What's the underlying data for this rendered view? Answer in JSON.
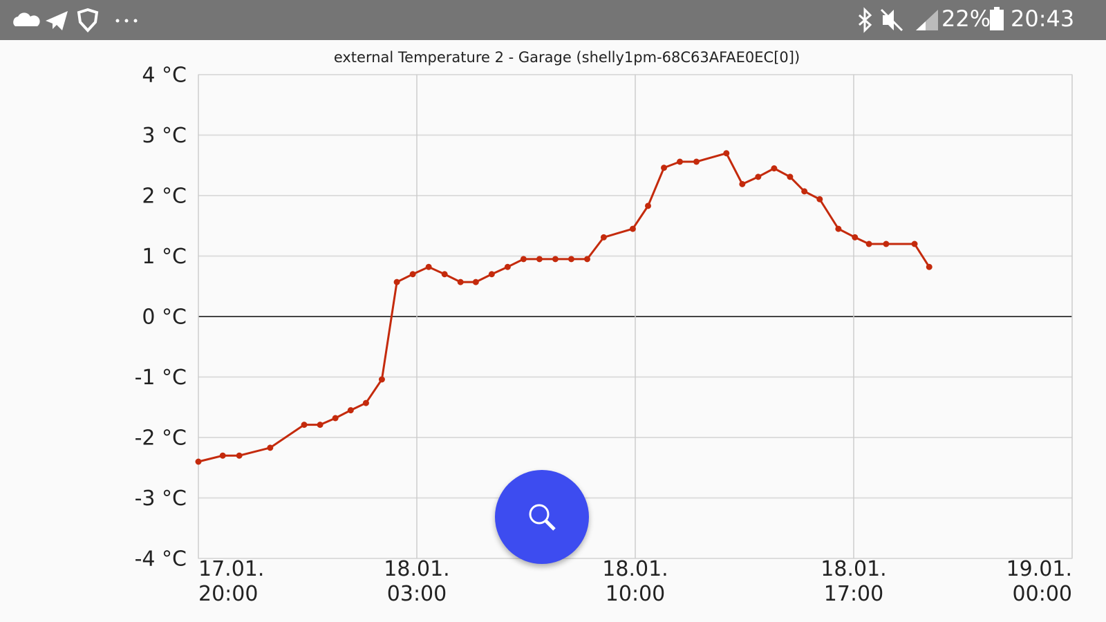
{
  "status_bar": {
    "battery": "22%",
    "time": "20:43"
  },
  "chart_data": {
    "type": "line",
    "title": "external Temperature 2 - Garage (shelly1pm-68C63AFAE0EC[0])",
    "x": [
      0,
      0.78,
      1.31,
      2.3,
      3.39,
      3.9,
      4.39,
      4.88,
      5.37,
      5.88,
      6.36,
      6.87,
      7.38,
      7.89,
      8.4,
      8.89,
      9.4,
      9.91,
      10.42,
      10.93,
      11.44,
      11.95,
      12.46,
      12.99,
      13.92,
      14.41,
      14.92,
      15.43,
      15.96,
      16.92,
      17.43,
      17.94,
      18.45,
      18.96,
      19.42,
      19.91,
      20.51,
      21.04,
      21.49,
      22.04,
      22.95,
      23.42
    ],
    "values": [
      -2.4,
      -2.3,
      -2.3,
      -2.17,
      -1.79,
      -1.79,
      -1.68,
      -1.55,
      -1.43,
      -1.04,
      0.57,
      0.7,
      0.82,
      0.7,
      0.57,
      0.57,
      0.7,
      0.82,
      0.95,
      0.95,
      0.95,
      0.95,
      0.95,
      1.31,
      1.45,
      1.83,
      2.46,
      2.56,
      2.56,
      2.7,
      2.19,
      2.31,
      2.45,
      2.31,
      2.07,
      1.94,
      1.45,
      1.31,
      1.2,
      1.2,
      1.2,
      0.82
    ],
    "color": "#c42a0c",
    "xlim": [
      0,
      28
    ],
    "xticks": [
      {
        "value": 0,
        "label": "17.01.\n20:00"
      },
      {
        "value": 7,
        "label": "18.01.\n03:00"
      },
      {
        "value": 14,
        "label": "18.01.\n10:00"
      },
      {
        "value": 21,
        "label": "18.01.\n17:00"
      },
      {
        "value": 28,
        "label": "19.01.\n00:00"
      }
    ],
    "ylim": [
      -4,
      4
    ],
    "yticks": [
      {
        "value": -4,
        "label": "-4 °C"
      },
      {
        "value": -3,
        "label": "-3 °C"
      },
      {
        "value": -2,
        "label": "-2 °C"
      },
      {
        "value": -1,
        "label": "-1 °C"
      },
      {
        "value": 0,
        "label": "0 °C"
      },
      {
        "value": 1,
        "label": "1 °C"
      },
      {
        "value": 2,
        "label": "2 °C"
      },
      {
        "value": 3,
        "label": "3 °C"
      },
      {
        "value": 4,
        "label": "4 °C"
      }
    ],
    "grid": true
  }
}
